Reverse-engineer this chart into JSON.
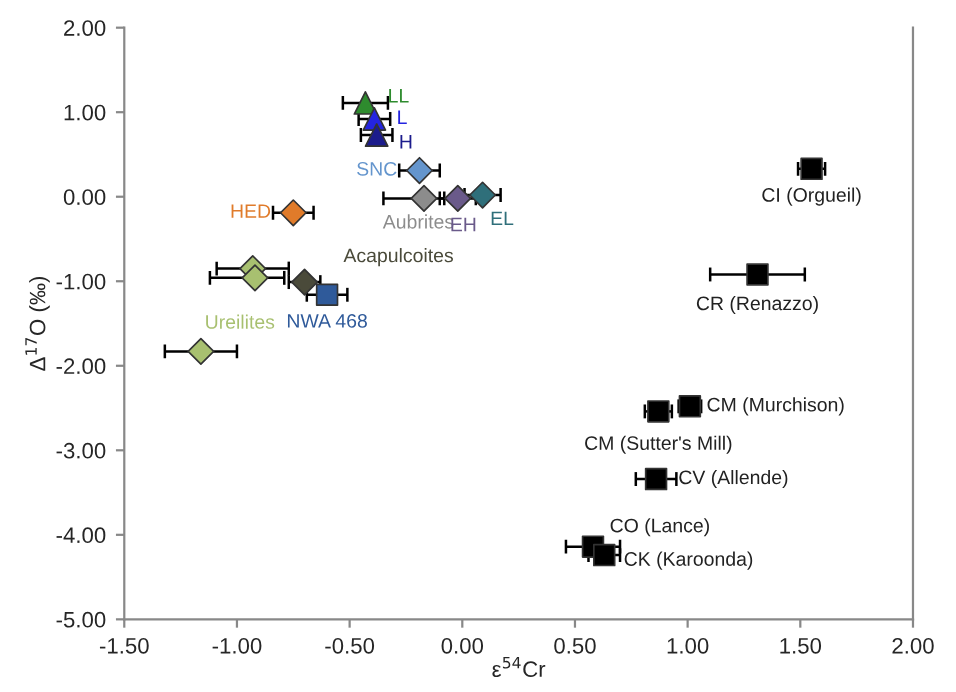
{
  "chart_data": {
    "type": "scatter",
    "xlabel": "ε$^{54}$Cr",
    "ylabel": "Δ$^{17}$O (‰)",
    "xlim": [
      -1.5,
      2.0
    ],
    "ylim": [
      -5.0,
      2.0
    ],
    "xticks": [
      {
        "value": -1.5,
        "label": "-1.50"
      },
      {
        "value": -1.0,
        "label": "-1.00"
      },
      {
        "value": -0.5,
        "label": "-0.50"
      },
      {
        "value": 0,
        "label": "0.00"
      },
      {
        "value": 0.5,
        "label": "0.50"
      },
      {
        "value": 1.0,
        "label": "1.00"
      },
      {
        "value": 1.5,
        "label": "1.50"
      },
      {
        "value": 2.0,
        "label": "2.00"
      }
    ],
    "yticks": [
      {
        "value": -5,
        "label": "-5.00"
      },
      {
        "value": -4,
        "label": "-4.00"
      },
      {
        "value": -3,
        "label": "-3.00"
      },
      {
        "value": -2,
        "label": "-2.00"
      },
      {
        "value": -1,
        "label": "-1.00"
      },
      {
        "value": 0,
        "label": "0.00"
      },
      {
        "value": 1,
        "label": "1.00"
      },
      {
        "value": 2,
        "label": "2.00"
      }
    ],
    "grid": false,
    "legend": false,
    "series": [
      {
        "name": "LL",
        "color": "#2e8b2e",
        "marker": "triangle",
        "x": [
          -0.43
        ],
        "values": [
          1.11
        ],
        "xerrors": [
          0.1
        ]
      },
      {
        "name": "L",
        "color": "#2424e0",
        "marker": "triangle",
        "x": [
          -0.39
        ],
        "values": [
          0.92
        ],
        "xerrors": [
          0.07
        ]
      },
      {
        "name": "H",
        "color": "#1c1c8c",
        "marker": "triangle",
        "x": [
          -0.38
        ],
        "values": [
          0.73
        ],
        "xerrors": [
          0.07
        ]
      },
      {
        "name": "SNC",
        "color": "#6495cd",
        "marker": "diamond",
        "x": [
          -0.19
        ],
        "values": [
          0.31
        ],
        "xerrors": [
          0.09
        ]
      },
      {
        "name": "Aubrites",
        "color": "#8c8c8c",
        "marker": "diamond",
        "x": [
          -0.17
        ],
        "values": [
          -0.02
        ],
        "xerrors": [
          [
            -0.35,
            -0.08
          ]
        ]
      },
      {
        "name": "EH",
        "color": "#6a5a8a",
        "marker": "diamond",
        "x": [
          -0.02
        ],
        "values": [
          -0.02
        ],
        "xerrors": [
          0.08
        ]
      },
      {
        "name": "EL",
        "color": "#2f6f7a",
        "marker": "diamond",
        "x": [
          0.09
        ],
        "values": [
          0.02
        ],
        "xerrors": [
          0.08
        ]
      },
      {
        "name": "HED",
        "color": "#e07b2a",
        "marker": "diamond",
        "x": [
          -0.75
        ],
        "values": [
          -0.19
        ],
        "xerrors": [
          0.09
        ]
      },
      {
        "name": "Ureilites",
        "color": "#a8c070",
        "marker": "diamond",
        "x": [
          -0.93,
          -0.92,
          -1.16
        ],
        "values": [
          -0.85,
          -0.96,
          -1.83
        ],
        "xerrors": [
          [
            -1.09,
            -0.77
          ],
          [
            -1.12,
            -0.79
          ],
          0.16
        ]
      },
      {
        "name": "Acapulcoites",
        "color": "#4a4a3a",
        "marker": "diamond",
        "x": [
          -0.7
        ],
        "values": [
          -1.01
        ],
        "xerrors": [
          0.07
        ]
      },
      {
        "name": "NWA 468",
        "color": "#2f5a9a",
        "marker": "square",
        "x": [
          -0.6
        ],
        "values": [
          -1.16
        ],
        "xerrors": [
          0.09
        ]
      },
      {
        "name": "CI (Orgueil)",
        "color": "#000000",
        "marker": "square",
        "x": [
          1.55
        ],
        "values": [
          0.33
        ],
        "xerrors": [
          0.06
        ]
      },
      {
        "name": "CR (Renazzo)",
        "color": "#000000",
        "marker": "square",
        "x": [
          1.31
        ],
        "values": [
          -0.92
        ],
        "xerrors": [
          0.21
        ]
      },
      {
        "name": "CM (Murchison)",
        "color": "#000000",
        "marker": "square",
        "x": [
          1.01
        ],
        "values": [
          -2.48
        ],
        "xerrors": [
          0.05
        ]
      },
      {
        "name": "CM (Sutter's Mill)",
        "color": "#000000",
        "marker": "square",
        "x": [
          0.87
        ],
        "values": [
          -2.54
        ],
        "xerrors": [
          0.06
        ]
      },
      {
        "name": "CV (Allende)",
        "color": "#000000",
        "marker": "square",
        "x": [
          0.86
        ],
        "values": [
          -3.34
        ],
        "xerrors": [
          0.09
        ]
      },
      {
        "name": "CO (Lance)",
        "color": "#000000",
        "marker": "square",
        "x": [
          0.58
        ],
        "values": [
          -4.14
        ],
        "xerrors": [
          0.12
        ]
      },
      {
        "name": "CK (Karoonda)",
        "color": "#000000",
        "marker": "square",
        "x": [
          0.63
        ],
        "values": [
          -4.24
        ],
        "xerrors": [
          0.07
        ]
      }
    ]
  }
}
